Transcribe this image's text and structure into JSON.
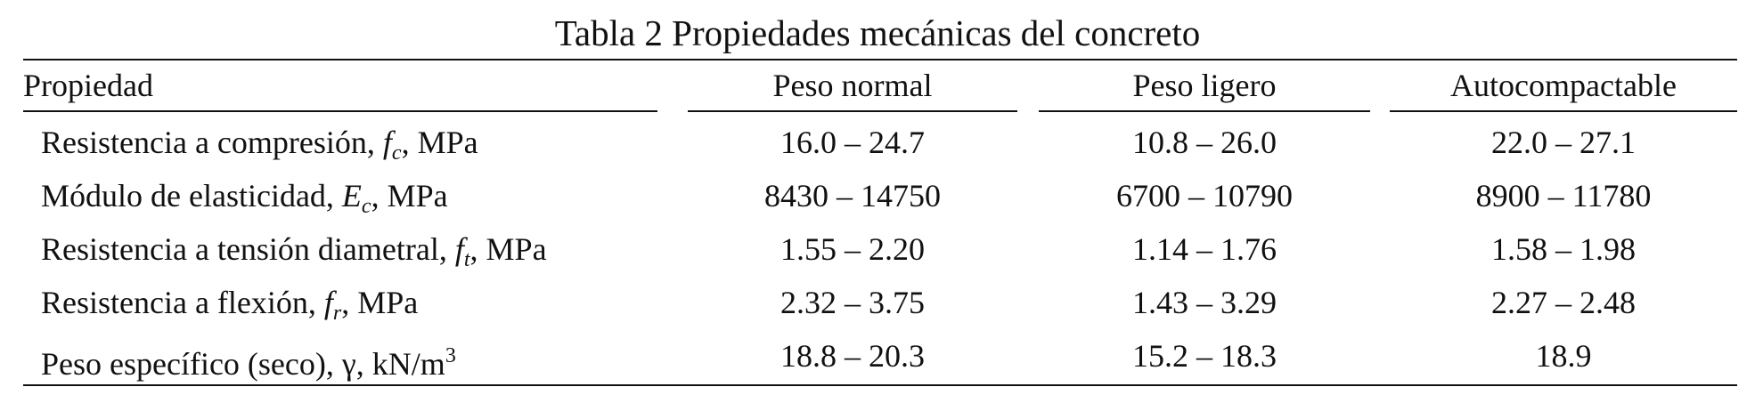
{
  "table": {
    "caption": "Tabla 2 Propiedades mecánicas del concreto",
    "headers": [
      "Propiedad",
      "Peso normal",
      "Peso ligero",
      "Autocompactable"
    ],
    "rows": [
      {
        "label": "Resistencia a compresión, ",
        "symbol": "f",
        "symbol_sub": "c",
        "after": ", MPa",
        "values": [
          "16.0 – 24.7",
          "10.8 – 26.0",
          "22.0 – 27.1"
        ]
      },
      {
        "label": "Módulo de elasticidad, ",
        "symbol": "E",
        "symbol_sub": "c",
        "after": ", MPa",
        "values": [
          "8430 – 14750",
          "6700 – 10790",
          "8900 – 11780"
        ]
      },
      {
        "label": "Resistencia a tensión diametral, ",
        "symbol": "f",
        "symbol_sub": "t",
        "after": ", MPa",
        "values": [
          "1.55 – 2.20",
          "1.14 – 1.76",
          "1.58 – 1.98"
        ]
      },
      {
        "label": "Resistencia a flexión, ",
        "symbol": "f",
        "symbol_sub": "r",
        "after": ", MPa",
        "values": [
          "2.32 – 3.75",
          "1.43 – 3.29",
          "2.27 – 2.48"
        ]
      },
      {
        "label": "Peso específico (seco), ",
        "symbol": "γ",
        "symbol_sub": "",
        "after": ", kN/m",
        "after_sup": "3",
        "values": [
          "18.8 – 20.3",
          "15.2 – 18.3",
          "18.9"
        ]
      }
    ]
  }
}
